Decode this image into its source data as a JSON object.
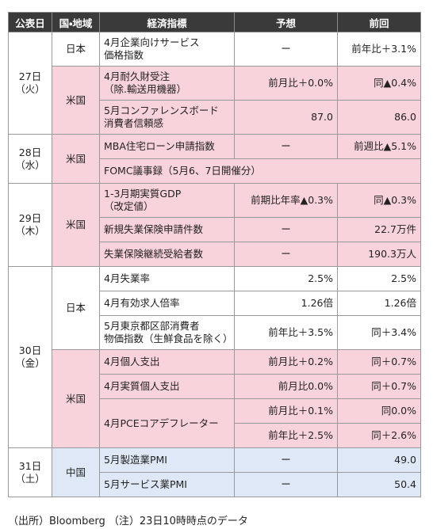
{
  "header": [
    "公表日",
    "国・地域",
    "経済指標",
    "予想",
    "前回"
  ],
  "days": [
    {
      "date": "27日\n（火）",
      "groups": [
        {
          "region": "日本",
          "color": "#ffffff",
          "rows": [
            {
              "indicator": "4月企業向けサービス\n価格指数",
              "forecast": "ー",
              "previous": "前年比＋3.1%"
            }
          ]
        },
        {
          "region": "米国",
          "color": "#f9d3db",
          "rows": [
            {
              "indicator": "4月耐久財受注\n（除.輸送用機器）",
              "forecast": "前月比＋0.0%",
              "previous": "同▲0.4%"
            },
            {
              "indicator": "5月コンファレンスボード\n消費者信頼感",
              "forecast": "87.0",
              "previous": "86.0"
            }
          ]
        }
      ]
    },
    {
      "date": "28日\n（水）",
      "groups": [
        {
          "region": "米国",
          "color": "#f9d3db",
          "rows": [
            {
              "indicator": "MBA住宅ローン申請指数",
              "forecast": "ー",
              "previous": "前週比▲5.1%"
            },
            {
              "indicator": "FOMC議事録（5月6、7日開催分）"
            }
          ]
        }
      ]
    },
    {
      "date": "29日\n（木）",
      "groups": [
        {
          "region": "米国",
          "color": "#f9d3db",
          "rows": [
            {
              "indicator": "1-3月期実質GDP\n（改定値）",
              "forecast": "前期比年率▲0.3%",
              "previous": "同▲0.3%"
            },
            {
              "indicator": "新規失業保険申請件数",
              "forecast": "ー",
              "previous": "22.7万件"
            },
            {
              "indicator": "失業保険継続受給者数",
              "forecast": "ー",
              "previous": "190.3万人"
            }
          ]
        }
      ]
    },
    {
      "date": "30日\n（金）",
      "groups": [
        {
          "region": "日本",
          "color": "#ffffff",
          "rows": [
            {
              "indicator": "4月失業率",
              "forecast": "2.5%",
              "previous": "2.5%"
            },
            {
              "indicator": "4月有効求人倍率",
              "forecast": "1.26倍",
              "previous": "1.26倍"
            },
            {
              "indicator": "5月東京都区部消費者\n物価指数（生鮮食品を除く）",
              "forecast": "前年比＋3.5%",
              "previous": "同＋3.4%"
            }
          ]
        },
        {
          "region": "米国",
          "color": "#f9d3db",
          "rows": [
            {
              "indicator": "4月個人支出",
              "forecast": "前月比＋0.2%",
              "previous": "同＋0.7%"
            },
            {
              "indicator": "4月実質個人支出",
              "forecast": "前月比0.0%",
              "previous": "同＋0.7%"
            },
            {
              "indicator": "4月PCEコアデフレーター",
              "lines": [
                [
                  "前月比＋0.1%",
                  "同0.0%"
                ],
                [
                  "前年比＋2.5%",
                  "同＋2.6%"
                ]
              ]
            }
          ]
        }
      ]
    },
    {
      "date": "31日\n（土）",
      "groups": [
        {
          "region": "中国",
          "color": "#dfe8f6",
          "rows": [
            {
              "indicator": "5月製造業PMI",
              "forecast": "ー",
              "previous": "49.0"
            },
            {
              "indicator": "5月サービス業PMI",
              "forecast": "ー",
              "previous": "50.4"
            }
          ]
        }
      ]
    }
  ],
  "footer": "（出所）Bloomberg （注）23日10時時点のデータ"
}
